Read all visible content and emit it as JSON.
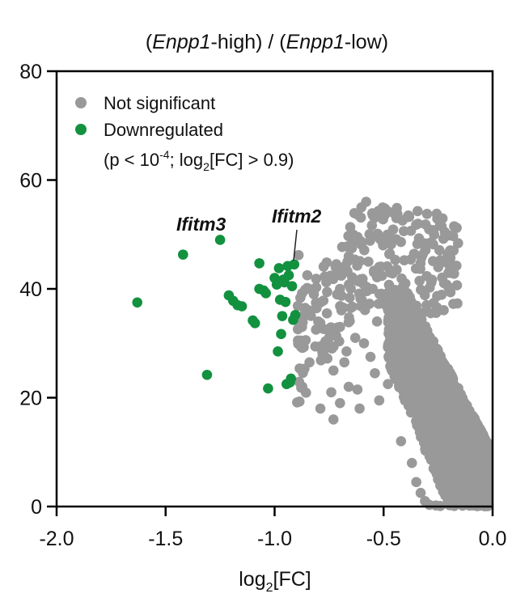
{
  "chart_data": {
    "type": "scatter",
    "title": {
      "open1": "(",
      "gene1": "Enpp1",
      "mid1": "-high) / (",
      "gene2": "Enpp1",
      "end": "-low)"
    },
    "xlabel": {
      "pre": "log",
      "sub": "2",
      "post": "[FC]"
    },
    "ylabel": "",
    "xlim": [
      -2.0,
      0.0
    ],
    "ylim": [
      0,
      80
    ],
    "x_ticks": [
      -2.0,
      -1.5,
      -1.0,
      -0.5,
      0.0
    ],
    "x_tick_labels": [
      "-2.0",
      "-1.5",
      "-1.0",
      "-0.5",
      "0.0"
    ],
    "y_ticks": [
      0,
      20,
      40,
      60,
      80
    ],
    "y_tick_labels": [
      "0",
      "20",
      "40",
      "60",
      "80"
    ],
    "grid": false,
    "legend_position": "top-left",
    "legend": {
      "not_significant": "Not significant",
      "downregulated": "Downregulated",
      "criteria": {
        "p1": "(p < 10",
        "p_exp": "-4",
        "p2": "; log",
        "log_sub": "2",
        "p3": "[FC] > 0.9)"
      }
    },
    "colors": {
      "not_significant": "#999999",
      "downregulated": "#12913f"
    },
    "annotations": [
      {
        "text": "Ifitm3",
        "x": -1.31,
        "y": 49
      },
      {
        "text": "Ifitm2",
        "x": -0.92,
        "y": 44.5
      }
    ],
    "series": [
      {
        "name": "Downregulated",
        "points": [
          [
            -1.63,
            37.5
          ],
          [
            -1.42,
            46.3
          ],
          [
            -1.31,
            24.2
          ],
          [
            -1.25,
            49.0
          ],
          [
            -1.21,
            38.8
          ],
          [
            -1.19,
            37.8
          ],
          [
            -1.17,
            37.0
          ],
          [
            -1.15,
            36.8
          ],
          [
            -1.1,
            34.2
          ],
          [
            -1.09,
            33.7
          ],
          [
            -1.07,
            44.7
          ],
          [
            -1.07,
            40.0
          ],
          [
            -1.05,
            39.7
          ],
          [
            -1.04,
            39.2
          ],
          [
            -1.03,
            21.7
          ],
          [
            -1.0,
            42.0
          ],
          [
            -0.99,
            40.8
          ],
          [
            -0.985,
            28.5
          ],
          [
            -0.98,
            43.8
          ],
          [
            -0.975,
            38.0
          ],
          [
            -0.97,
            31.7
          ],
          [
            -0.965,
            35.0
          ],
          [
            -0.96,
            41.7
          ],
          [
            -0.955,
            41.2
          ],
          [
            -0.95,
            37.6
          ],
          [
            -0.945,
            22.5
          ],
          [
            -0.94,
            44.2
          ],
          [
            -0.935,
            42.5
          ],
          [
            -0.93,
            22.8
          ],
          [
            -0.925,
            23.5
          ],
          [
            -0.92,
            40.5
          ],
          [
            -0.915,
            34.3
          ],
          [
            -0.91,
            44.5
          ],
          [
            -0.905,
            35.2
          ]
        ]
      },
      {
        "name": "Not significant",
        "points": [
          [
            -0.58,
            56.0
          ],
          [
            -0.64,
            50.0
          ],
          [
            -0.69,
            47.7
          ],
          [
            -0.66,
            46.0
          ],
          [
            -0.89,
            46.2
          ],
          [
            -0.85,
            42.5
          ],
          [
            -0.82,
            39.0
          ],
          [
            -0.86,
            36.5
          ],
          [
            -0.79,
            37.5
          ],
          [
            -0.8,
            34.0
          ],
          [
            -0.76,
            35.5
          ],
          [
            -0.75,
            31.0
          ],
          [
            -0.7,
            40.0
          ],
          [
            -0.7,
            33.0
          ],
          [
            -0.78,
            28.0
          ],
          [
            -0.84,
            26.5
          ],
          [
            -0.73,
            25.0
          ],
          [
            -0.74,
            21.0
          ],
          [
            -0.68,
            26.5
          ],
          [
            -0.66,
            22.0
          ],
          [
            -0.79,
            18.0
          ],
          [
            -0.73,
            16.0
          ],
          [
            -0.7,
            19.0
          ],
          [
            -0.61,
            18.0
          ],
          [
            -0.57,
            45.0
          ],
          [
            -0.55,
            40.0
          ],
          [
            -0.6,
            38.0
          ],
          [
            -0.53,
            34.0
          ],
          [
            -0.47,
            43.0
          ],
          [
            -0.49,
            37.0
          ],
          [
            -0.51,
            39.0
          ],
          [
            -0.4,
            41.0
          ],
          [
            -0.44,
            43.5
          ],
          [
            -0.38,
            38.5
          ],
          [
            -0.42,
            12.0
          ],
          [
            -0.37,
            8.0
          ],
          [
            -0.35,
            4.5
          ],
          [
            -0.33,
            2.5
          ],
          [
            -0.31,
            1.0
          ],
          [
            -0.29,
            0.3
          ],
          [
            -0.26,
            0.2
          ],
          [
            -0.24,
            0.1
          ],
          [
            -0.62,
            21.5
          ],
          [
            -0.56,
            27.5
          ],
          [
            -0.63,
            31.0
          ],
          [
            -0.46,
            28.5
          ],
          [
            -0.65,
            36.5
          ],
          [
            -0.59,
            30.0
          ],
          [
            -0.52,
            19.5
          ],
          [
            -0.48,
            22.5
          ],
          [
            -0.54,
            24.5
          ],
          [
            -0.72,
            44.0
          ],
          [
            -0.76,
            41.5
          ],
          [
            -0.88,
            30.5
          ],
          [
            -0.81,
            32.5
          ],
          [
            -0.67,
            28.5
          ]
        ]
      }
    ]
  }
}
